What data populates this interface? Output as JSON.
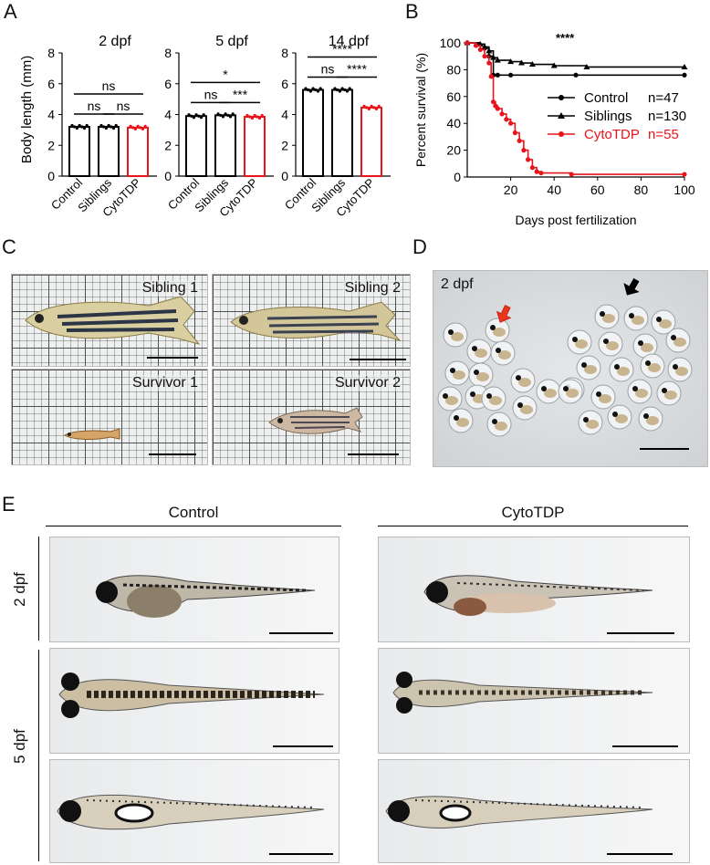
{
  "panels": {
    "a": "A",
    "b": "B",
    "c": "C",
    "d": "D",
    "e": "E"
  },
  "panel_a": {
    "ylabel": "Body length (mm)",
    "categories": [
      "Control",
      "Siblings",
      "CytoTDP"
    ],
    "charts": [
      {
        "title": "2 dpf",
        "values": [
          3.2,
          3.2,
          3.15
        ],
        "sig": [
          {
            "label": "ns"
          },
          {
            "label": "ns"
          },
          {
            "label": "ns"
          }
        ]
      },
      {
        "title": "5 dpf",
        "values": [
          3.9,
          3.95,
          3.85
        ],
        "sig": [
          {
            "label": "ns"
          },
          {
            "label": "***"
          },
          {
            "label": "*"
          }
        ]
      },
      {
        "title": "14 dpf",
        "values": [
          5.6,
          5.6,
          4.45
        ],
        "sig": [
          {
            "label": "ns"
          },
          {
            "label": "****"
          },
          {
            "label": "****"
          }
        ]
      }
    ],
    "yticks": [
      "0",
      "2",
      "4",
      "6",
      "8"
    ]
  },
  "chart_data": [
    {
      "type": "bar",
      "title": "2 dpf",
      "categories": [
        "Control",
        "Siblings",
        "CytoTDP"
      ],
      "values": [
        3.2,
        3.2,
        3.15
      ],
      "ylabel": "Body length (mm)",
      "ylim": [
        0,
        8
      ]
    },
    {
      "type": "bar",
      "title": "5 dpf",
      "categories": [
        "Control",
        "Siblings",
        "CytoTDP"
      ],
      "values": [
        3.9,
        3.95,
        3.85
      ],
      "ylabel": "",
      "ylim": [
        0,
        8
      ]
    },
    {
      "type": "bar",
      "title": "14 dpf",
      "categories": [
        "Control",
        "Siblings",
        "CytoTDP"
      ],
      "values": [
        5.6,
        5.6,
        4.45
      ],
      "ylabel": "",
      "ylim": [
        0,
        8
      ]
    },
    {
      "type": "line",
      "xlabel": "Days post fertilization",
      "ylabel": "Percent survival (%)",
      "xlim": [
        0,
        100
      ],
      "ylim": [
        0,
        100
      ],
      "annotation": "****",
      "xticks": [
        "20",
        "40",
        "60",
        "80",
        "100"
      ],
      "yticks": [
        "0",
        "20",
        "40",
        "60",
        "80",
        "100"
      ],
      "series": [
        {
          "name": "Control",
          "n": "n=47",
          "color": "#000000",
          "marker": "circle",
          "x": [
            0,
            5,
            8,
            10,
            12,
            14,
            20,
            50,
            100
          ],
          "y": [
            100,
            99,
            96,
            90,
            76,
            76,
            76,
            76,
            76
          ]
        },
        {
          "name": "Siblings",
          "n": "n=130",
          "color": "#000000",
          "marker": "triangle",
          "x": [
            0,
            6,
            8,
            10,
            12,
            14,
            20,
            25,
            30,
            40,
            55,
            100
          ],
          "y": [
            100,
            99,
            97,
            94,
            89,
            87,
            86,
            85,
            84,
            83,
            82,
            82
          ]
        },
        {
          "name": "CytoTDP",
          "n": "n=55",
          "color": "#e8141b",
          "marker": "circle",
          "x": [
            0,
            4,
            6,
            8,
            10,
            11,
            12,
            13,
            14,
            16,
            18,
            20,
            22,
            24,
            26,
            28,
            30,
            32,
            34,
            48,
            100
          ],
          "y": [
            100,
            98,
            95,
            90,
            85,
            75,
            56,
            53,
            51,
            47,
            43,
            40,
            33,
            27,
            20,
            13,
            7,
            4,
            3,
            2,
            2
          ]
        }
      ]
    }
  ],
  "panel_c": {
    "labels": [
      "Sibling 1",
      "Sibling 2",
      "Survivor 1",
      "Survivor 2"
    ]
  },
  "panel_d": {
    "label": "2 dpf"
  },
  "panel_e": {
    "groups": [
      "Control",
      "CytoTDP"
    ],
    "rows": [
      "2 dpf",
      "5 dpf"
    ]
  }
}
